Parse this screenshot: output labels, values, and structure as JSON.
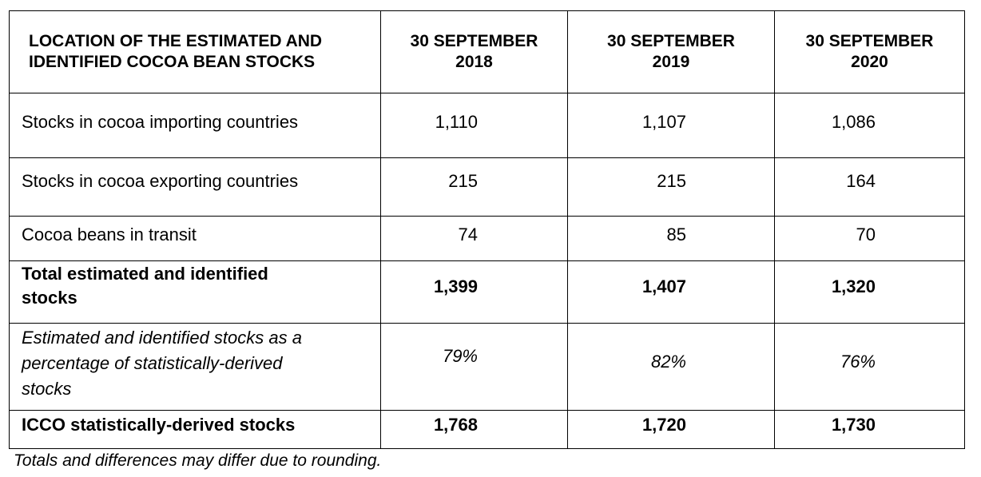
{
  "table": {
    "header": {
      "location_line1": "LOCATION OF THE ESTIMATED AND",
      "location_line2": "IDENTIFIED COCOA BEAN STOCKS",
      "years": [
        {
          "line1": "30 SEPTEMBER",
          "line2": "2018"
        },
        {
          "line1": "30 SEPTEMBER",
          "line2": "2019"
        },
        {
          "line1": "30 SEPTEMBER",
          "line2": "2020"
        }
      ]
    },
    "rows": [
      {
        "label": "Stocks in cocoa importing countries",
        "values": [
          "1,110",
          "1,107",
          "1,086"
        ]
      },
      {
        "label": "Stocks in cocoa exporting countries",
        "values": [
          "215",
          "215",
          "164"
        ]
      },
      {
        "label": "Cocoa beans in transit",
        "values": [
          "74",
          "85",
          "70"
        ]
      },
      {
        "label_line1": "Total estimated and identified",
        "label_line2": "stocks",
        "values": [
          "1,399",
          "1,407",
          "1,320"
        ]
      },
      {
        "label_line1": "Estimated and identified stocks as a",
        "label_line2": "percentage of statistically-derived",
        "label_line3": "stocks",
        "values": [
          "79%",
          "82%",
          "76%"
        ]
      },
      {
        "label": "ICCO statistically-derived stocks",
        "values": [
          "1,768",
          "1,720",
          "1,730"
        ]
      }
    ]
  },
  "footnote": "Totals and differences may differ due to rounding."
}
